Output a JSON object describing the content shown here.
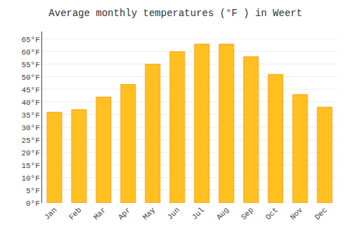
{
  "chart_data": {
    "type": "bar",
    "title": "Average monthly temperatures (°F ) in Weert",
    "categories": [
      "Jan",
      "Feb",
      "Mar",
      "Apr",
      "May",
      "Jun",
      "Jul",
      "Aug",
      "Sep",
      "Oct",
      "Nov",
      "Dec"
    ],
    "values": [
      36,
      37,
      42,
      47,
      55,
      60,
      63,
      63,
      58,
      51,
      43,
      38
    ],
    "color": "#FFC020",
    "ylim": [
      0,
      68
    ],
    "yticks": [
      {
        "value": 0,
        "label": "0°F"
      },
      {
        "value": 5,
        "label": "5°F"
      },
      {
        "value": 10,
        "label": "10°F"
      },
      {
        "value": 15,
        "label": "15°F"
      },
      {
        "value": 20,
        "label": "20°F"
      },
      {
        "value": 25,
        "label": "25°F"
      },
      {
        "value": 30,
        "label": "30°F"
      },
      {
        "value": 35,
        "label": "35°F"
      },
      {
        "value": 40,
        "label": "40°F"
      },
      {
        "value": 45,
        "label": "45°F"
      },
      {
        "value": 50,
        "label": "50°F"
      },
      {
        "value": 55,
        "label": "55°F"
      },
      {
        "value": 60,
        "label": "60°F"
      },
      {
        "value": 65,
        "label": "65°F"
      }
    ],
    "grid": true
  }
}
